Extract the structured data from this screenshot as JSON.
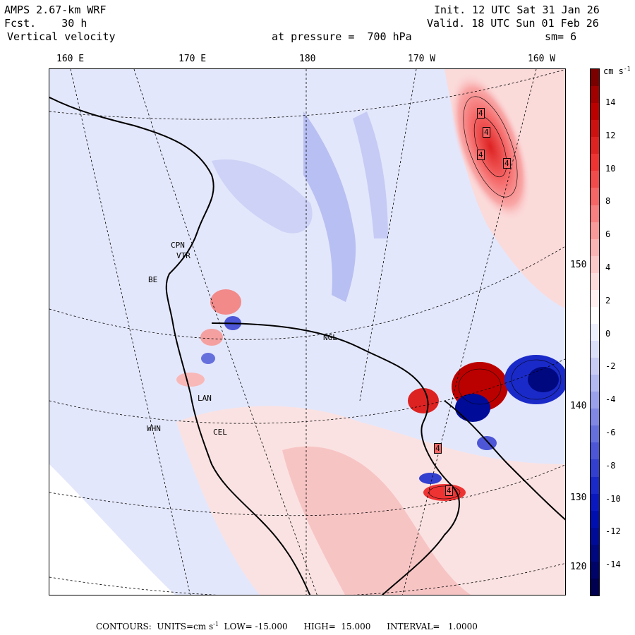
{
  "header": {
    "model": "AMPS 2.67-km WRF",
    "fcst": "Fcst.    30 h",
    "field": "Vertical velocity",
    "init": "Init. 12 UTC Sat 31 Jan 26",
    "valid": "Valid. 18 UTC Sun 01 Feb 26",
    "level": "at pressure =  700 hPa",
    "smooth": "sm= 6"
  },
  "lon_labels": [
    "160 E",
    "170 E",
    "180",
    "170 W",
    "160 W"
  ],
  "lat_labels": [
    "150 W",
    "140 W",
    "130 W",
    "120 W"
  ],
  "colorbar": {
    "units": "cm s",
    "units_sup": "-1",
    "ticks": [
      "14",
      "12",
      "10",
      "8",
      "6",
      "4",
      "2",
      "0",
      "-2",
      "-4",
      "-6",
      "-8",
      "-10",
      "-12",
      "-14"
    ],
    "colors": [
      "#7a0000",
      "#a00000",
      "#bb0000",
      "#cc1111",
      "#dd2222",
      "#ee3333",
      "#f24b4b",
      "#f56666",
      "#f78080",
      "#f99a9a",
      "#fbb4b4",
      "#fcc8c8",
      "#fddcdc",
      "#fef0f0",
      "#ffffff",
      "#eef0fc",
      "#dcdff8",
      "#c8ccf4",
      "#b2b8f0",
      "#9aa0ea",
      "#8088e4",
      "#6670dd",
      "#4c56d6",
      "#3340cf",
      "#1a2ac8",
      "#0a18c0",
      "#0010b0",
      "#000c98",
      "#000880",
      "#000468",
      "#000050"
    ]
  },
  "stations": [
    "CPN",
    "VTR",
    "BE",
    "NGL",
    "LAN",
    "WHN",
    "CEL"
  ],
  "contour_labels": [
    "4",
    "4",
    "4",
    "4",
    "4",
    "4"
  ],
  "footer": {
    "prefix": "CONTOURS:  UNITS=cm s",
    "sup": "-1",
    "rest": "  LOW= -15.000      HIGH=  15.000      INTERVAL=   1.0000"
  }
}
